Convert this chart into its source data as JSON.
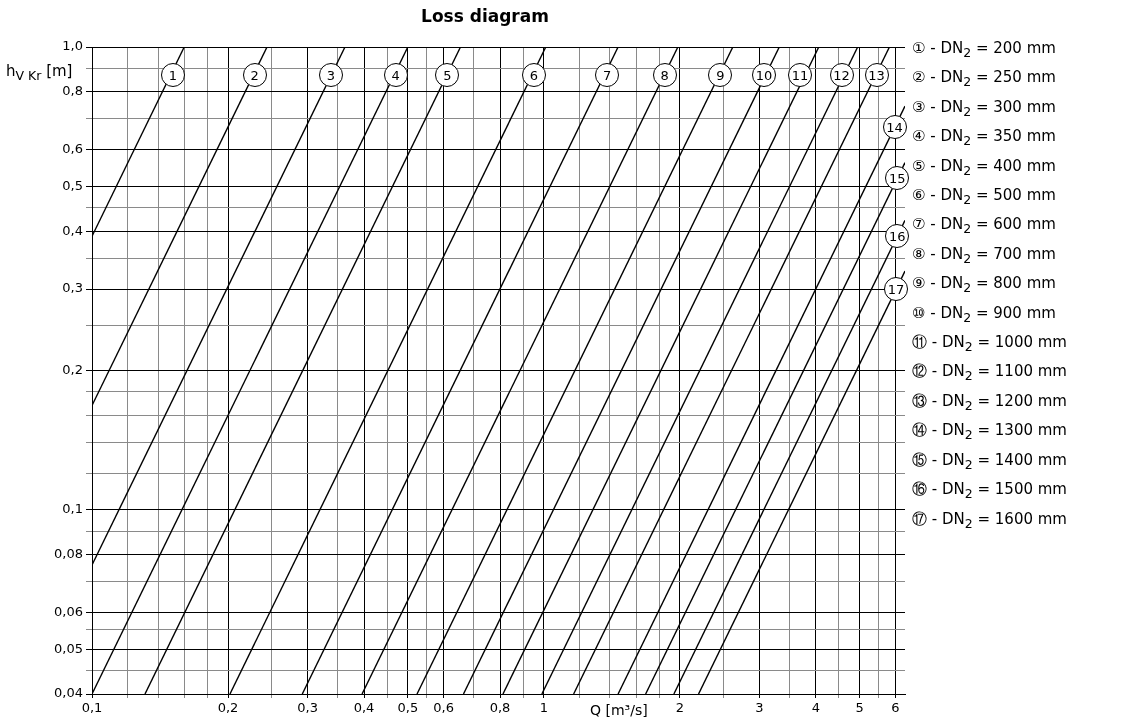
{
  "chart_data": {
    "type": "line",
    "title": "Loss diagram",
    "xlabel": "Q [m³/s]",
    "ylabel": "h$_{V Kr}$ [m]",
    "log": "xy",
    "grid": true,
    "legend": "right",
    "marker": "none",
    "line_style": "solid",
    "xlim": [
      0.1,
      6.3
    ],
    "ylim": [
      0.04,
      1.0
    ],
    "xticks": [
      {
        "value": 0.1,
        "label": "0,1"
      },
      {
        "value": 0.12,
        "label": null
      },
      {
        "value": 0.14,
        "label": null
      },
      {
        "value": 0.16,
        "label": null
      },
      {
        "value": 0.18,
        "label": null
      },
      {
        "value": 0.2,
        "label": "0,2"
      },
      {
        "value": 0.25,
        "label": null
      },
      {
        "value": 0.3,
        "label": "0,3"
      },
      {
        "value": 0.35,
        "label": null
      },
      {
        "value": 0.4,
        "label": "0,4"
      },
      {
        "value": 0.45,
        "label": null
      },
      {
        "value": 0.5,
        "label": "0,5"
      },
      {
        "value": 0.55,
        "label": null
      },
      {
        "value": 0.6,
        "label": "0,6"
      },
      {
        "value": 0.7,
        "label": null
      },
      {
        "value": 0.8,
        "label": "0,8"
      },
      {
        "value": 0.9,
        "label": null
      },
      {
        "value": 1,
        "label": "1"
      },
      {
        "value": 1.2,
        "label": null
      },
      {
        "value": 1.4,
        "label": null
      },
      {
        "value": 1.6,
        "label": null
      },
      {
        "value": 1.8,
        "label": null
      },
      {
        "value": 2,
        "label": "2"
      },
      {
        "value": 2.5,
        "label": null
      },
      {
        "value": 3,
        "label": "3"
      },
      {
        "value": 3.5,
        "label": null
      },
      {
        "value": 4,
        "label": "4"
      },
      {
        "value": 4.5,
        "label": null
      },
      {
        "value": 5,
        "label": "5"
      },
      {
        "value": 5.5,
        "label": null
      },
      {
        "value": 6,
        "label": "6"
      }
    ],
    "yticks": [
      {
        "value": 0.04,
        "label": "0,04"
      },
      {
        "value": 0.045,
        "label": null
      },
      {
        "value": 0.05,
        "label": "0,05"
      },
      {
        "value": 0.055,
        "label": null
      },
      {
        "value": 0.06,
        "label": "0,06"
      },
      {
        "value": 0.07,
        "label": null
      },
      {
        "value": 0.08,
        "label": "0,08"
      },
      {
        "value": 0.09,
        "label": null
      },
      {
        "value": 0.1,
        "label": "0,1"
      },
      {
        "value": 0.12,
        "label": null
      },
      {
        "value": 0.14,
        "label": null
      },
      {
        "value": 0.16,
        "label": null
      },
      {
        "value": 0.18,
        "label": null
      },
      {
        "value": 0.2,
        "label": "0,2"
      },
      {
        "value": 0.25,
        "label": null
      },
      {
        "value": 0.3,
        "label": "0,3"
      },
      {
        "value": 0.35,
        "label": null
      },
      {
        "value": 0.4,
        "label": "0,4"
      },
      {
        "value": 0.45,
        "label": null
      },
      {
        "value": 0.5,
        "label": "0,5"
      },
      {
        "value": 0.6,
        "label": "0,6"
      },
      {
        "value": 0.7,
        "label": null
      },
      {
        "value": 0.8,
        "label": "0,8"
      },
      {
        "value": 0.9,
        "label": null
      },
      {
        "value": 1.0,
        "label": "1,0"
      }
    ],
    "series": [
      {
        "name": "① - DN$_{2}$ = 200 mm",
        "color": "#000000",
        "x": [
          0.1,
          0.16
        ],
        "values": [
          0.39,
          1.0
        ]
      },
      {
        "name": "② - DN$_{2}$ = 250 mm",
        "color": "#000000",
        "x": [
          0.1,
          0.244
        ],
        "values": [
          0.168,
          1.0
        ]
      },
      {
        "name": "③ - DN$_{2}$ = 300 mm",
        "color": "#000000",
        "x": [
          0.1,
          0.363
        ],
        "values": [
          0.076,
          1.0
        ]
      },
      {
        "name": "④ - DN$_{2}$ = 350 mm",
        "color": "#000000",
        "x": [
          0.1,
          0.5
        ],
        "values": [
          0.04,
          1.0
        ]
      },
      {
        "name": "⑤ - DN$_{2}$ = 400 mm",
        "color": "#000000",
        "x": [
          0.131,
          0.654
        ],
        "values": [
          0.04,
          1.0
        ]
      },
      {
        "name": "⑥ - DN$_{2}$ = 500 mm",
        "color": "#000000",
        "x": [
          0.202,
          1.01
        ],
        "values": [
          0.04,
          1.0
        ]
      },
      {
        "name": "⑦ - DN$_{2}$ = 600 mm",
        "color": "#000000",
        "x": [
          0.292,
          1.46
        ],
        "values": [
          0.04,
          1.0
        ]
      },
      {
        "name": "⑧ - DN$_{2}$ = 700 mm",
        "color": "#000000",
        "x": [
          0.396,
          1.98
        ],
        "values": [
          0.04,
          1.0
        ]
      },
      {
        "name": "⑨ - DN$_{2}$ = 800 mm",
        "color": "#000000",
        "x": [
          0.524,
          2.62
        ],
        "values": [
          0.04,
          1.0
        ]
      },
      {
        "name": "⑩ - DN$_{2}$ = 900 mm",
        "color": "#000000",
        "x": [
          0.664,
          3.32
        ],
        "values": [
          0.04,
          1.0
        ]
      },
      {
        "name": "⑪ - DN$_{2}$ = 1000 mm",
        "color": "#000000",
        "x": [
          0.812,
          4.06
        ],
        "values": [
          0.04,
          1.0
        ]
      },
      {
        "name": "⑫ - DN$_{2}$ = 1100 mm",
        "color": "#000000",
        "x": [
          0.99,
          4.95
        ],
        "values": [
          0.04,
          1.0
        ]
      },
      {
        "name": "⑬ - DN$_{2}$ = 1200 mm",
        "color": "#000000",
        "x": [
          1.164,
          5.82
        ],
        "values": [
          0.04,
          1.0
        ]
      },
      {
        "name": "⑭ - DN$_{2}$ = 1300 mm",
        "color": "#000000",
        "x": [
          1.46,
          6.3
        ],
        "values": [
          0.04,
          0.745
        ]
      },
      {
        "name": "⑮ - DN$_{2}$ = 1400 mm",
        "color": "#000000",
        "x": [
          1.68,
          6.3
        ],
        "values": [
          0.04,
          0.5625
        ]
      },
      {
        "name": "⑯ - DN$_{2}$ = 1500 mm",
        "color": "#000000",
        "x": [
          1.94,
          6.3
        ],
        "values": [
          0.04,
          0.422
        ]
      },
      {
        "name": "⑰ - DN$_{2}$ = 1600 mm",
        "color": "#000000",
        "x": [
          2.2,
          6.3
        ],
        "values": [
          0.04,
          0.328
        ]
      }
    ],
    "annotations": [
      {
        "text": "1",
        "x": 0.151,
        "y": 0.87
      },
      {
        "text": "2",
        "x": 0.229,
        "y": 0.87
      },
      {
        "text": "3",
        "x": 0.338,
        "y": 0.87
      },
      {
        "text": "4",
        "x": 0.47,
        "y": 0.87
      },
      {
        "text": "5",
        "x": 0.612,
        "y": 0.87
      },
      {
        "text": "6",
        "x": 0.95,
        "y": 0.87
      },
      {
        "text": "7",
        "x": 1.38,
        "y": 0.87
      },
      {
        "text": "8",
        "x": 1.85,
        "y": 0.87
      },
      {
        "text": "9",
        "x": 2.46,
        "y": 0.87
      },
      {
        "text": "10",
        "x": 3.07,
        "y": 0.87
      },
      {
        "text": "11",
        "x": 3.69,
        "y": 0.87
      },
      {
        "text": "12",
        "x": 4.56,
        "y": 0.87
      },
      {
        "text": "13",
        "x": 5.45,
        "y": 0.87
      },
      {
        "text": "14",
        "x": 5.975,
        "y": 0.67
      },
      {
        "text": "15",
        "x": 6.06,
        "y": 0.52
      },
      {
        "text": "16",
        "x": 6.06,
        "y": 0.39
      },
      {
        "text": "17",
        "x": 6.02,
        "y": 0.3
      }
    ]
  }
}
